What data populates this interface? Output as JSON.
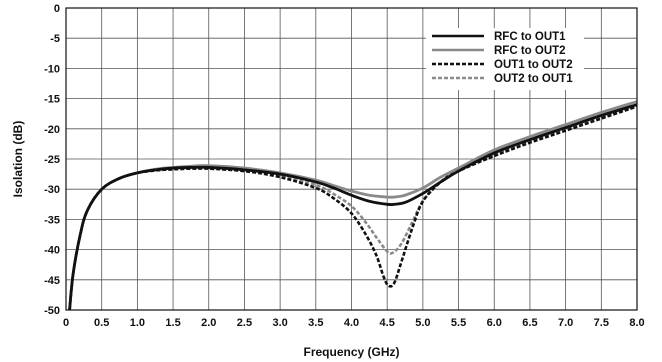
{
  "chart_data": {
    "type": "line",
    "title": "",
    "xlabel": "Frequency (GHz)",
    "ylabel": "Isolation (dB)",
    "xlim": [
      0,
      8
    ],
    "ylim": [
      -50,
      0
    ],
    "x_ticks": [
      "0",
      "0.5",
      "1.0",
      "1.5",
      "2.0",
      "2.5",
      "3.0",
      "3.5",
      "4.0",
      "4.5",
      "5.0",
      "5.5",
      "6.0",
      "6.5",
      "7.0",
      "7.5",
      "8.0"
    ],
    "y_ticks": [
      "0",
      "-5",
      "-10",
      "-15",
      "-20",
      "-25",
      "-30",
      "-35",
      "-40",
      "-45",
      "-50"
    ],
    "grid": true,
    "legend_position": "top-right",
    "series": [
      {
        "name": "RFC to OUT1",
        "color": "#111111",
        "dash": "solid",
        "x": [
          0.05,
          0.1,
          0.2,
          0.3,
          0.5,
          0.75,
          1.0,
          1.25,
          1.5,
          1.75,
          2.0,
          2.5,
          3.0,
          3.5,
          3.75,
          4.0,
          4.25,
          4.5,
          4.6,
          4.75,
          5.0,
          5.25,
          5.5,
          6.0,
          6.5,
          7.0,
          7.5,
          8.0
        ],
        "y": [
          -50,
          -44,
          -37.5,
          -33.5,
          -30,
          -28.2,
          -27.3,
          -26.8,
          -26.5,
          -26.4,
          -26.4,
          -26.8,
          -27.5,
          -28.8,
          -29.8,
          -31.0,
          -32.0,
          -32.5,
          -32.5,
          -32.2,
          -30.7,
          -28.8,
          -27.0,
          -24.0,
          -21.8,
          -19.8,
          -17.8,
          -16.0
        ]
      },
      {
        "name": "RFC to OUT2",
        "color": "#8a8a8a",
        "dash": "solid",
        "x": [
          0.05,
          0.1,
          0.2,
          0.3,
          0.5,
          0.75,
          1.0,
          1.25,
          1.5,
          1.75,
          2.0,
          2.5,
          3.0,
          3.5,
          3.75,
          4.0,
          4.25,
          4.5,
          4.6,
          4.75,
          5.0,
          5.25,
          5.5,
          6.0,
          6.5,
          7.0,
          7.5,
          8.0
        ],
        "y": [
          -50,
          -44,
          -37.5,
          -33.5,
          -30,
          -28.2,
          -27.3,
          -26.7,
          -26.4,
          -26.2,
          -26.1,
          -26.5,
          -27.3,
          -28.5,
          -29.4,
          -30.3,
          -31.0,
          -31.3,
          -31.3,
          -31.0,
          -29.8,
          -28.0,
          -26.5,
          -23.5,
          -21.3,
          -19.3,
          -17.3,
          -15.5
        ]
      },
      {
        "name": "OUT1 to OUT2",
        "color": "#111111",
        "dash": "dashed",
        "x": [
          0.05,
          0.1,
          0.2,
          0.3,
          0.5,
          0.75,
          1.0,
          1.25,
          1.5,
          1.75,
          2.0,
          2.5,
          3.0,
          3.5,
          3.75,
          4.0,
          4.2,
          4.35,
          4.45,
          4.52,
          4.6,
          4.7,
          4.85,
          5.0,
          5.25,
          5.5,
          6.0,
          6.5,
          7.0,
          7.5,
          8.0
        ],
        "y": [
          -50,
          -44,
          -37.5,
          -33.5,
          -30,
          -28.2,
          -27.3,
          -26.9,
          -26.7,
          -26.6,
          -26.6,
          -27.0,
          -28.0,
          -29.8,
          -31.5,
          -34.0,
          -37.5,
          -41.0,
          -44.5,
          -46.0,
          -45.5,
          -42.0,
          -36.5,
          -32.0,
          -28.8,
          -27.0,
          -24.5,
          -22.3,
          -20.3,
          -18.3,
          -16.3
        ]
      },
      {
        "name": "OUT2 to OUT1",
        "color": "#8a8a8a",
        "dash": "dashed",
        "x": [
          0.05,
          0.1,
          0.2,
          0.3,
          0.5,
          0.75,
          1.0,
          1.25,
          1.5,
          1.75,
          2.0,
          2.5,
          3.0,
          3.5,
          3.75,
          4.0,
          4.2,
          4.35,
          4.5,
          4.58,
          4.7,
          4.85,
          5.0,
          5.25,
          5.5,
          6.0,
          6.5,
          7.0,
          7.5,
          8.0
        ],
        "y": [
          -50,
          -44,
          -37.5,
          -33.5,
          -30,
          -28.2,
          -27.3,
          -26.9,
          -26.7,
          -26.6,
          -26.6,
          -27.0,
          -27.8,
          -29.3,
          -30.8,
          -32.8,
          -35.5,
          -38.0,
          -40.3,
          -40.5,
          -39.0,
          -35.5,
          -32.0,
          -28.8,
          -26.8,
          -24.3,
          -22.0,
          -20.0,
          -18.0,
          -16.3
        ]
      }
    ]
  }
}
